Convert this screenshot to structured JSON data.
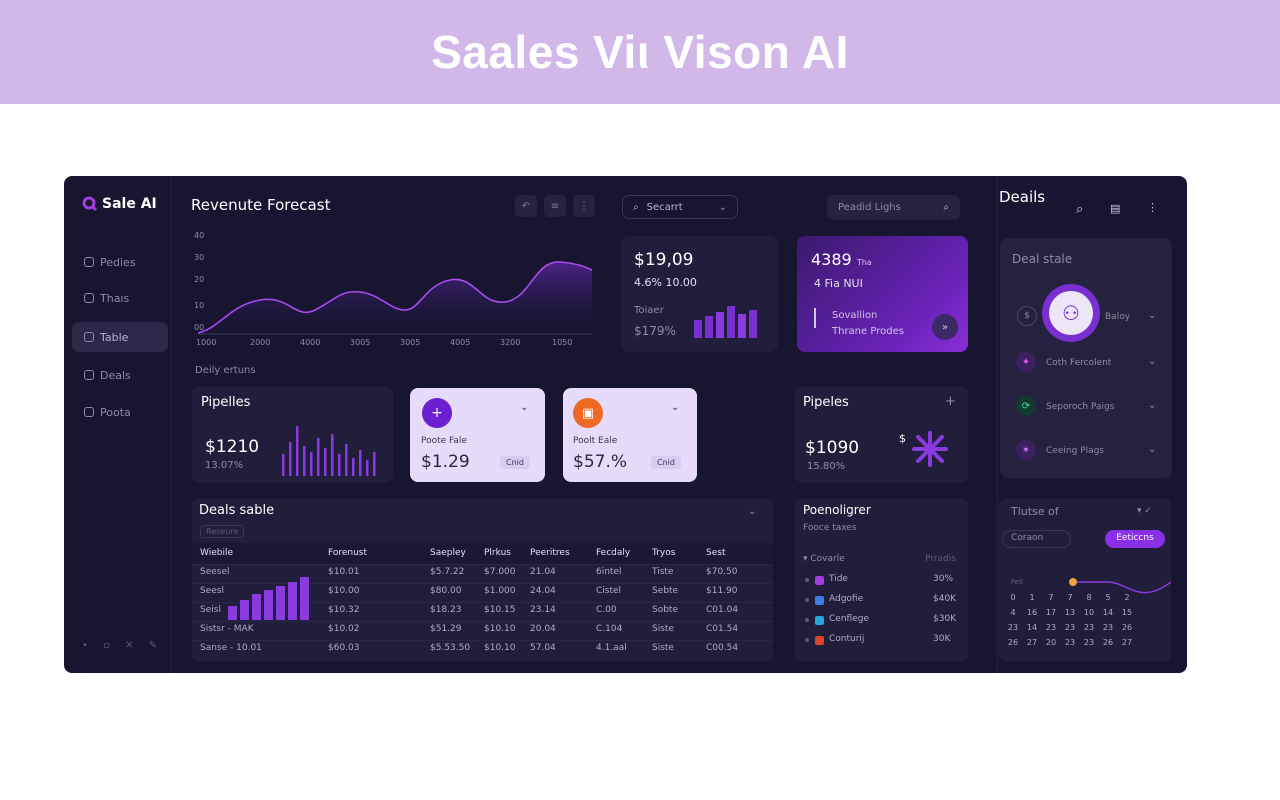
{
  "banner": {
    "title": "Saales Viι Vison AI"
  },
  "sidebar": {
    "logo": "Sale AI",
    "items": [
      {
        "label": "Pedies"
      },
      {
        "label": "Thaıs"
      },
      {
        "label": "Table"
      },
      {
        "label": "Deals"
      },
      {
        "label": "Poota"
      }
    ],
    "footer": "• ▫ ✕ ✎"
  },
  "forecast": {
    "title": "Revenute Forecast",
    "ylabels": [
      "40",
      "30",
      "20",
      "10",
      "00"
    ],
    "xlabels": [
      "1000",
      "2000",
      "4000",
      "3005",
      "3005",
      "4005",
      "3200",
      "1050"
    ],
    "caption": "Deily ertuns"
  },
  "search": {
    "value": "Secarrt"
  },
  "filter": {
    "value": "Peadid Lighs"
  },
  "stat1": {
    "value": "$19,09",
    "sub": "4.6% 10.00",
    "label": "Toiaer",
    "pct": "$179%"
  },
  "stat2": {
    "value": "4389",
    "suffix": "Tha",
    "sub": "4 Fia NUI",
    "line1": "Sovallion",
    "line2": "Thrane Prodes"
  },
  "pipelines1": {
    "title": "Pipelles",
    "value": "$1210",
    "pct": "13.07%"
  },
  "mini1": {
    "label": "Poote Fale",
    "value": "$1.29",
    "btn": "Cnid"
  },
  "mini2": {
    "label": "Poolt Eale",
    "value": "$57.%",
    "btn": "Cnid"
  },
  "pipelines2": {
    "title": "Pipeles",
    "value": "$1090",
    "pct": "15.80%",
    "sym": "$"
  },
  "deals": {
    "title": "Deals sable",
    "sub": "Reseure",
    "headers": [
      "Wiebile",
      "Forenust",
      "Saepley",
      "Plrkus",
      "Peeritres",
      "Fecdaly",
      "Tryos",
      "Sest"
    ],
    "rows": [
      [
        "Seesel",
        "$10.01",
        "$5.7.22",
        "$7.000",
        "21.04",
        "6intel",
        "Tiste",
        "$70.50"
      ],
      [
        "Seesl",
        "$10.00",
        "$80.00",
        "$1.000",
        "24.04",
        "Cistel",
        "Sebte",
        "$11.90"
      ],
      [
        "Seisl",
        "$10.32",
        "$18.23",
        "$10.15",
        "23.14",
        "C.00",
        "Sobte",
        "C01.04"
      ],
      [
        "Sistsr - MAK",
        "$10.02",
        "$51.29",
        "$10.10",
        "20.04",
        "C.104",
        "Siste",
        "C01.54"
      ],
      [
        "Sanse - 10.01",
        "$60.03",
        "$5.53.50",
        "$10.10",
        "57.04",
        "4.1.aal",
        "Siste",
        "C00.54"
      ]
    ]
  },
  "categories": {
    "title": "Poenoligrer",
    "sub": "Fooce taxes",
    "header_left": "Covarle",
    "header_right": "Prradis",
    "items": [
      {
        "label": "Tide",
        "value": "30%",
        "color": "#a23be0"
      },
      {
        "label": "Adgofie",
        "value": "$40K",
        "color": "#3b7de8"
      },
      {
        "label": "Cenflege",
        "value": "$30K",
        "color": "#2aa5d9"
      },
      {
        "label": "Conturij",
        "value": "30K",
        "color": "#d9432a"
      }
    ]
  },
  "dealsPanel": {
    "title": "Deails",
    "stage": "Deal stale",
    "items": [
      {
        "label": "Baloy"
      },
      {
        "label": "Coth Fercolent"
      },
      {
        "label": "Seporoch Paigs"
      },
      {
        "label": "Ceeing Plags"
      }
    ]
  },
  "calendar": {
    "title": "Tlutse of",
    "field": "Coraon",
    "button": "Eeticcns",
    "label": "Fell",
    "rows": [
      [
        "0",
        "1",
        "7",
        "7",
        "8",
        "5",
        "2"
      ],
      [
        "4",
        "16",
        "17",
        "13",
        "10",
        "14",
        "15"
      ],
      [
        "23",
        "14",
        "23",
        "23",
        "23",
        "23",
        "26"
      ],
      [
        "26",
        "27",
        "20",
        "23",
        "23",
        "26",
        "27"
      ]
    ]
  }
}
